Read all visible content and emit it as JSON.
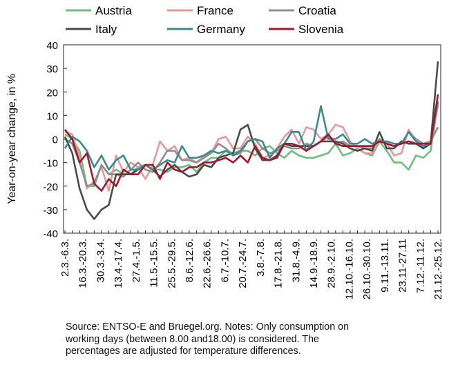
{
  "chart_data": {
    "type": "line",
    "title": "",
    "xlabel": "",
    "ylabel": "Year-on-year change, in %",
    "ylim": [
      -40,
      40
    ],
    "yticks": [
      -40,
      -30,
      -20,
      -10,
      0,
      10,
      20,
      30,
      40
    ],
    "grid": false,
    "legend_position": "top",
    "x_tick_labels": [
      "2.3.-6.3.",
      "16.3.-20.3.",
      "30.3.-3.4.",
      "13.4.-17.4.",
      "27.4.-1.5.",
      "11.5.-15.5.",
      "25.5.-29.5.",
      "8.6.-12.6.",
      "22.6.-26.6.",
      "6.7.-10.7.",
      "20.7.-24.7.",
      "3.8.-7.8.",
      "17.8.-21.8.",
      "31.8.-4.9.",
      "14.9.-18.9.",
      "28.9.-2.10.",
      "12.10.-16.10.",
      "26.10.-30.10.",
      "9.11.-13.11.",
      "23.11-27.11",
      "7.12.-11.12.",
      "21.12.-25.12."
    ],
    "series": [
      {
        "name": "Austria",
        "color": "#6dbf7d",
        "values": [
          2,
          0,
          -5,
          -20,
          -20,
          -11,
          -15,
          -13,
          -15,
          -15,
          -12,
          -11,
          -13,
          -13,
          -14,
          -12,
          -12,
          -11,
          -14,
          -10,
          -8,
          -8,
          -5,
          -6,
          -5,
          -5,
          -7,
          -4,
          -3,
          -6,
          -8,
          -5,
          -7,
          -8,
          -8,
          -7,
          -6,
          -2,
          -7,
          -6,
          -4,
          -6,
          -7,
          -1,
          -5,
          -10,
          -10,
          -13,
          -7,
          -8,
          -5,
          15
        ]
      },
      {
        "name": "France",
        "color": "#e59a97",
        "values": [
          3,
          2,
          -8,
          -21,
          -18,
          -12,
          -22,
          -7,
          -14,
          -10,
          -12,
          -17,
          -11,
          -1,
          -5,
          -3,
          -9,
          -8,
          -10,
          -7,
          -6,
          0,
          1,
          -4,
          -4,
          1,
          -2,
          -8,
          -7,
          -4,
          1,
          4,
          -2,
          5,
          4,
          0,
          2,
          6,
          5,
          -1,
          -4,
          -6,
          -6,
          0,
          -2,
          -7,
          -6,
          4,
          -1,
          -4,
          -2,
          14
        ]
      },
      {
        "name": "Croatia",
        "color": "#8f8f8f",
        "values": [
          0,
          -2,
          -10,
          -20,
          -19,
          -11,
          -15,
          -15,
          -16,
          -13,
          -10,
          -13,
          -14,
          -10,
          -5,
          -5,
          -9,
          -9,
          -10,
          -8,
          -6,
          -2,
          -4,
          -7,
          -6,
          -1,
          0,
          -4,
          -6,
          -5,
          -3,
          -4,
          -4,
          -2,
          -3,
          -1,
          1,
          -2,
          -1,
          -3,
          -3,
          -4,
          -4,
          0,
          -2,
          -3,
          -2,
          3,
          0,
          -2,
          -1,
          5
        ]
      },
      {
        "name": "Italy",
        "color": "#4a4a4a",
        "values": [
          1,
          -6,
          -21,
          -30,
          -34,
          -30,
          -28,
          -15,
          -15,
          -15,
          -13,
          -11,
          -13,
          -16,
          -13,
          -11,
          -14,
          -16,
          -15,
          -11,
          -12,
          -8,
          -7,
          -6,
          4,
          6,
          -4,
          -9,
          -9,
          -8,
          -2,
          -3,
          -3,
          -3,
          -3,
          -1,
          -1,
          -1,
          -2,
          -4,
          -5,
          -4,
          -5,
          3,
          -4,
          -4,
          -1,
          -2,
          -2,
          -4,
          -2,
          33
        ]
      },
      {
        "name": "Germany",
        "color": "#3a8a8f",
        "values": [
          -4,
          1,
          -1,
          -5,
          -12,
          -7,
          -13,
          -9,
          -7,
          -13,
          -13,
          -11,
          -13,
          -11,
          -9,
          -10,
          -3,
          -8,
          -8,
          -7,
          -5,
          -6,
          -5,
          -7,
          -5,
          -1,
          0,
          -1,
          -8,
          -4,
          -2,
          3,
          3,
          -5,
          -1,
          14,
          0,
          0,
          2,
          -2,
          -2,
          0,
          -2,
          -1,
          -1,
          -2,
          -2,
          3,
          -1,
          -3,
          -2,
          16
        ]
      },
      {
        "name": "Slovenia",
        "color": "#a3162c",
        "values": [
          4,
          0,
          -10,
          -6,
          -19,
          -22,
          -17,
          -20,
          -13,
          -15,
          -15,
          -11,
          -11,
          -17,
          -10,
          -13,
          -14,
          -12,
          -12,
          -10,
          -10,
          -9,
          -8,
          -10,
          -7,
          -10,
          -3,
          -8,
          -9,
          -7,
          -2,
          -2,
          -3,
          -5,
          -3,
          -1,
          2,
          -2,
          -3,
          -3,
          -3,
          -3,
          -3,
          -1,
          -2,
          -3,
          -2,
          -1,
          -2,
          -2,
          -2,
          19
        ]
      }
    ]
  },
  "note_lines": [
    "Source: ENTSO-E and Bruegel.org. Notes: Only consumption on",
    "working days (between 8.00 and18.00) is considered. The",
    "percentages are adjusted for temperature differences."
  ]
}
